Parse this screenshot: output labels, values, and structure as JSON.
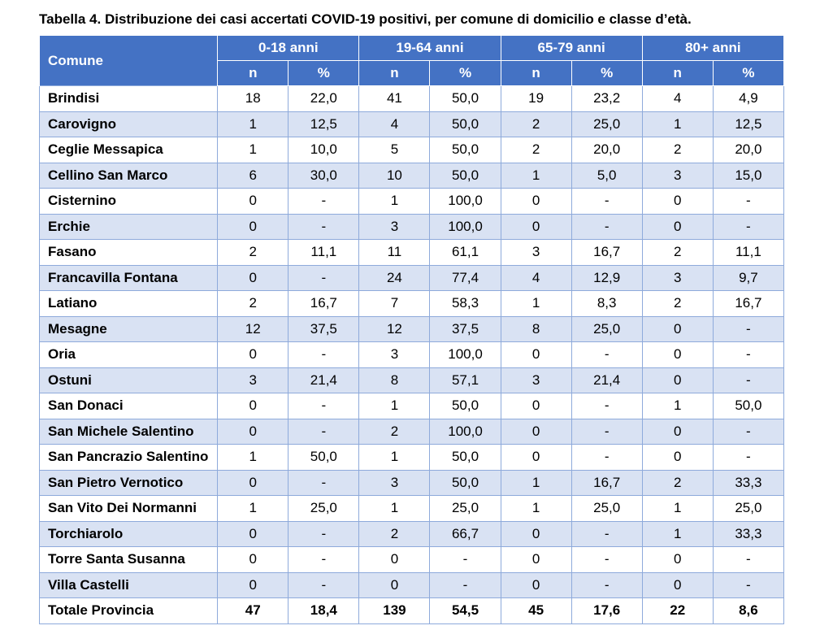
{
  "title": "Tabella 4. Distribuzione dei casi accertati COVID-19 positivi, per comune di domicilio e classe d’età.",
  "header": {
    "comune": "Comune",
    "groups": [
      "0-18 anni",
      "19-64 anni",
      "65-79 anni",
      "80+ anni"
    ],
    "sub": [
      "n",
      "%",
      "n",
      "%",
      "n",
      "%",
      "n",
      "%"
    ]
  },
  "rows": [
    {
      "name": "Brindisi",
      "v": [
        "18",
        "22,0",
        "41",
        "50,0",
        "19",
        "23,2",
        "4",
        "4,9"
      ]
    },
    {
      "name": "Carovigno",
      "v": [
        "1",
        "12,5",
        "4",
        "50,0",
        "2",
        "25,0",
        "1",
        "12,5"
      ]
    },
    {
      "name": "Ceglie Messapica",
      "v": [
        "1",
        "10,0",
        "5",
        "50,0",
        "2",
        "20,0",
        "2",
        "20,0"
      ]
    },
    {
      "name": "Cellino San Marco",
      "v": [
        "6",
        "30,0",
        "10",
        "50,0",
        "1",
        "5,0",
        "3",
        "15,0"
      ]
    },
    {
      "name": "Cisternino",
      "v": [
        "0",
        "-",
        "1",
        "100,0",
        "0",
        "-",
        "0",
        "-"
      ]
    },
    {
      "name": "Erchie",
      "v": [
        "0",
        "-",
        "3",
        "100,0",
        "0",
        "-",
        "0",
        "-"
      ]
    },
    {
      "name": "Fasano",
      "v": [
        "2",
        "11,1",
        "11",
        "61,1",
        "3",
        "16,7",
        "2",
        "11,1"
      ]
    },
    {
      "name": "Francavilla Fontana",
      "v": [
        "0",
        "-",
        "24",
        "77,4",
        "4",
        "12,9",
        "3",
        "9,7"
      ]
    },
    {
      "name": "Latiano",
      "v": [
        "2",
        "16,7",
        "7",
        "58,3",
        "1",
        "8,3",
        "2",
        "16,7"
      ]
    },
    {
      "name": "Mesagne",
      "v": [
        "12",
        "37,5",
        "12",
        "37,5",
        "8",
        "25,0",
        "0",
        "-"
      ]
    },
    {
      "name": "Oria",
      "v": [
        "0",
        "-",
        "3",
        "100,0",
        "0",
        "-",
        "0",
        "-"
      ]
    },
    {
      "name": "Ostuni",
      "v": [
        "3",
        "21,4",
        "8",
        "57,1",
        "3",
        "21,4",
        "0",
        "-"
      ]
    },
    {
      "name": "San Donaci",
      "v": [
        "0",
        "-",
        "1",
        "50,0",
        "0",
        "-",
        "1",
        "50,0"
      ]
    },
    {
      "name": "San Michele Salentino",
      "v": [
        "0",
        "-",
        "2",
        "100,0",
        "0",
        "-",
        "0",
        "-"
      ]
    },
    {
      "name": "San Pancrazio Salentino",
      "v": [
        "1",
        "50,0",
        "1",
        "50,0",
        "0",
        "-",
        "0",
        "-"
      ]
    },
    {
      "name": "San Pietro Vernotico",
      "v": [
        "0",
        "-",
        "3",
        "50,0",
        "1",
        "16,7",
        "2",
        "33,3"
      ]
    },
    {
      "name": "San Vito Dei Normanni",
      "v": [
        "1",
        "25,0",
        "1",
        "25,0",
        "1",
        "25,0",
        "1",
        "25,0"
      ]
    },
    {
      "name": "Torchiarolo",
      "v": [
        "0",
        "-",
        "2",
        "66,7",
        "0",
        "-",
        "1",
        "33,3"
      ]
    },
    {
      "name": "Torre Santa Susanna",
      "v": [
        "0",
        "-",
        "0",
        "-",
        "0",
        "-",
        "0",
        "-"
      ]
    },
    {
      "name": "Villa Castelli",
      "v": [
        "0",
        "-",
        "0",
        "-",
        "0",
        "-",
        "0",
        "-"
      ]
    }
  ],
  "total": {
    "name": "Totale Provincia",
    "v": [
      "47",
      "18,4",
      "139",
      "54,5",
      "45",
      "17,6",
      "22",
      "8,6"
    ]
  }
}
